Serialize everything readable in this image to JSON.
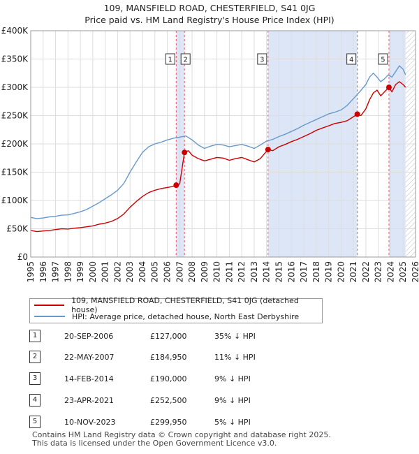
{
  "title_line1": "109, MANSFIELD ROAD, CHESTERFIELD, S41 0JG",
  "title_line2": "Price paid vs. HM Land Registry's House Price Index (HPI)",
  "colors": {
    "property": "#cc0000",
    "hpi": "#6699cc",
    "shade": "#dde6f7",
    "grid": "#dddddd",
    "marker_line": "#e06060",
    "hatch": "#bbbbbb"
  },
  "chart_data": {
    "type": "line",
    "title": "Price paid vs. HM Land Registry's House Price Index (HPI)",
    "xlabel": "",
    "ylabel": "",
    "xlim": [
      1995,
      2026
    ],
    "ylim": [
      0,
      400000
    ],
    "y_ticks": [
      0,
      50000,
      100000,
      150000,
      200000,
      250000,
      300000,
      350000,
      400000
    ],
    "y_tick_labels": [
      "£0",
      "£50K",
      "£100K",
      "£150K",
      "£200K",
      "£250K",
      "£300K",
      "£350K",
      "£400K"
    ],
    "x_ticks": [
      1995,
      1996,
      1997,
      1998,
      1999,
      2000,
      2001,
      2002,
      2003,
      2004,
      2005,
      2006,
      2007,
      2008,
      2009,
      2010,
      2011,
      2012,
      2013,
      2014,
      2015,
      2016,
      2017,
      2018,
      2019,
      2020,
      2021,
      2022,
      2023,
      2024,
      2025,
      2026
    ],
    "x_tick_labels": [
      "1995",
      "1996",
      "1997",
      "1998",
      "1999",
      "2000",
      "2001",
      "2002",
      "2003",
      "2004",
      "2005",
      "2006",
      "2007",
      "2008",
      "2009",
      "2010",
      "2011",
      "2012",
      "2013",
      "2014",
      "2015",
      "2016",
      "2017",
      "2018",
      "2019",
      "2020",
      "2021",
      "2022",
      "2023",
      "2024",
      "2025",
      "2026"
    ],
    "future_hatch_from": 2025.2,
    "shaded_spans": [
      [
        2006.72,
        2007.39
      ],
      [
        2014.12,
        2021.31
      ],
      [
        2023.86,
        2025.2
      ]
    ],
    "series": [
      {
        "name": "109, MANSFIELD ROAD, CHESTERFIELD, S41 0JG (detached house)",
        "color": "#cc0000",
        "x": [
          1995.0,
          1995.5,
          1996.0,
          1996.5,
          1997.0,
          1997.5,
          1998.0,
          1998.5,
          1999.0,
          1999.5,
          2000.0,
          2000.5,
          2001.0,
          2001.5,
          2002.0,
          2002.5,
          2003.0,
          2003.5,
          2004.0,
          2004.5,
          2005.0,
          2005.5,
          2006.0,
          2006.5,
          2006.72,
          2007.0,
          2007.39,
          2007.7,
          2008.0,
          2008.5,
          2009.0,
          2009.5,
          2010.0,
          2010.5,
          2011.0,
          2011.5,
          2012.0,
          2012.5,
          2013.0,
          2013.5,
          2014.12,
          2014.5,
          2015.0,
          2015.5,
          2016.0,
          2016.5,
          2017.0,
          2017.5,
          2018.0,
          2018.5,
          2019.0,
          2019.5,
          2020.0,
          2020.5,
          2021.0,
          2021.31,
          2021.6,
          2022.0,
          2022.3,
          2022.6,
          2022.9,
          2023.2,
          2023.5,
          2023.86,
          2024.1,
          2024.4,
          2024.7,
          2025.0,
          2025.2
        ],
        "values": [
          47000,
          45000,
          46000,
          47000,
          48500,
          50000,
          49500,
          51000,
          52000,
          53500,
          55000,
          58000,
          60000,
          63000,
          68000,
          76000,
          88000,
          98000,
          107000,
          114000,
          118000,
          121000,
          123000,
          125000,
          127000,
          129000,
          184950,
          188000,
          180000,
          174000,
          170000,
          173000,
          176000,
          175000,
          171000,
          174000,
          176000,
          172000,
          168000,
          174000,
          190000,
          188000,
          195000,
          199000,
          204000,
          208000,
          213000,
          218000,
          224000,
          228000,
          232000,
          236000,
          238000,
          241000,
          248000,
          252500,
          250000,
          262000,
          278000,
          290000,
          295000,
          285000,
          292000,
          299950,
          292000,
          305000,
          310000,
          305000,
          300000
        ]
      },
      {
        "name": "HPI: Average price, detached house, North East Derbyshire",
        "color": "#6699cc",
        "x": [
          1995.0,
          1995.5,
          1996.0,
          1996.5,
          1997.0,
          1997.5,
          1998.0,
          1998.5,
          1999.0,
          1999.5,
          2000.0,
          2000.5,
          2001.0,
          2001.5,
          2002.0,
          2002.5,
          2003.0,
          2003.5,
          2004.0,
          2004.5,
          2005.0,
          2005.5,
          2006.0,
          2006.5,
          2007.0,
          2007.5,
          2008.0,
          2008.5,
          2009.0,
          2009.5,
          2010.0,
          2010.5,
          2011.0,
          2011.5,
          2012.0,
          2012.5,
          2013.0,
          2013.5,
          2014.0,
          2014.5,
          2015.0,
          2015.5,
          2016.0,
          2016.5,
          2017.0,
          2017.5,
          2018.0,
          2018.5,
          2019.0,
          2019.5,
          2020.0,
          2020.5,
          2021.0,
          2021.5,
          2022.0,
          2022.3,
          2022.6,
          2022.9,
          2023.2,
          2023.5,
          2023.8,
          2024.1,
          2024.4,
          2024.7,
          2025.0,
          2025.2
        ],
        "values": [
          70000,
          68000,
          69000,
          71000,
          72000,
          74000,
          74500,
          77000,
          80000,
          84000,
          90000,
          96000,
          103000,
          110000,
          118000,
          130000,
          150000,
          168000,
          185000,
          195000,
          200000,
          203000,
          207000,
          210000,
          212000,
          214000,
          207000,
          198000,
          192000,
          196000,
          199000,
          198000,
          195000,
          197000,
          199000,
          196000,
          192000,
          198000,
          205000,
          208000,
          213000,
          217000,
          222000,
          227000,
          233000,
          238000,
          243000,
          248000,
          253000,
          256000,
          260000,
          268000,
          280000,
          292000,
          305000,
          318000,
          325000,
          318000,
          310000,
          315000,
          322000,
          318000,
          328000,
          338000,
          332000,
          322000
        ]
      }
    ],
    "annotations": [
      {
        "label": "1",
        "x": 2006.72,
        "price": 127000
      },
      {
        "label": "2",
        "x": 2007.39,
        "price": 184950
      },
      {
        "label": "3",
        "x": 2014.12,
        "price": 190000
      },
      {
        "label": "4",
        "x": 2021.31,
        "price": 252500
      },
      {
        "label": "5",
        "x": 2023.86,
        "price": 299950
      }
    ]
  },
  "legend": [
    {
      "label": "109, MANSFIELD ROAD, CHESTERFIELD, S41 0JG (detached house)",
      "color": "#cc0000"
    },
    {
      "label": "HPI: Average price, detached house, North East Derbyshire",
      "color": "#6699cc"
    }
  ],
  "sales": [
    {
      "num": "1",
      "date": "20-SEP-2006",
      "price": "£127,000",
      "hpi": "35% ↓ HPI"
    },
    {
      "num": "2",
      "date": "22-MAY-2007",
      "price": "£184,950",
      "hpi": "11% ↓ HPI"
    },
    {
      "num": "3",
      "date": "14-FEB-2014",
      "price": "£190,000",
      "hpi": "9% ↓ HPI"
    },
    {
      "num": "4",
      "date": "23-APR-2021",
      "price": "£252,500",
      "hpi": "9% ↓ HPI"
    },
    {
      "num": "5",
      "date": "10-NOV-2023",
      "price": "£299,950",
      "hpi": "5% ↓ HPI"
    }
  ],
  "footer_line1": "Contains HM Land Registry data © Crown copyright and database right 2025.",
  "footer_line2": "This data is licensed under the Open Government Licence v3.0."
}
